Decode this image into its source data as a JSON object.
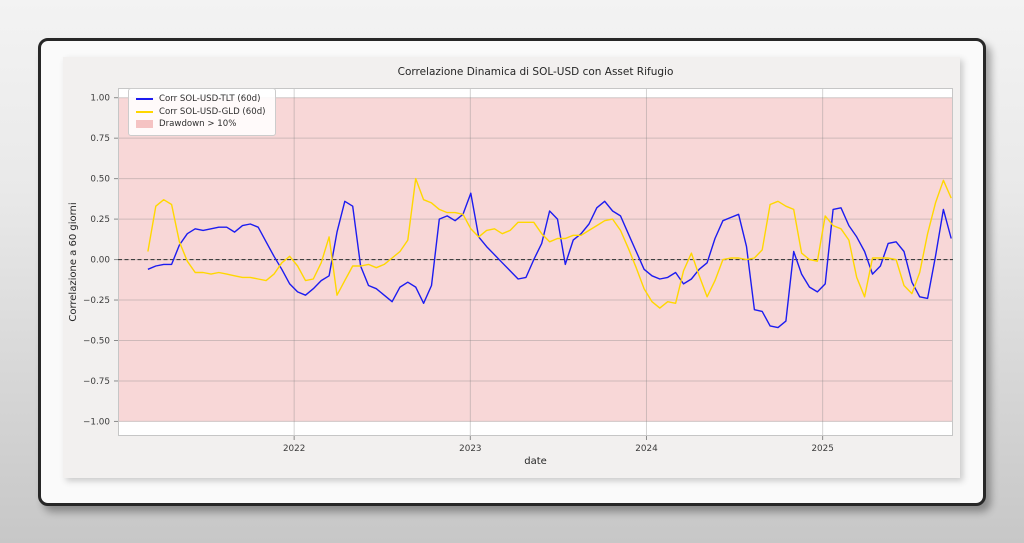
{
  "window": {
    "kind": "framed chart card"
  },
  "chart_data": {
    "type": "line",
    "title": "Correlazione Dinamica di SOL-USD con Asset Rifugio",
    "xlabel": "date",
    "ylabel": "Correlazione a 60 giorni",
    "grid": true,
    "legend_position": "upper-left",
    "xlim": [
      2021.0,
      2025.74
    ],
    "ylim": [
      -1.09,
      1.06
    ],
    "x_ticks": [
      {
        "value": 2022,
        "label": "2022"
      },
      {
        "value": 2023,
        "label": "2023"
      },
      {
        "value": 2024,
        "label": "2024"
      },
      {
        "value": 2025,
        "label": "2025"
      }
    ],
    "y_ticks": [
      {
        "value": 1.0,
        "label": "1.00"
      },
      {
        "value": 0.75,
        "label": "0.75"
      },
      {
        "value": 0.5,
        "label": "0.50"
      },
      {
        "value": 0.25,
        "label": "0.25"
      },
      {
        "value": 0.0,
        "label": "0.00"
      },
      {
        "value": -0.25,
        "label": "−0.25"
      },
      {
        "value": -0.5,
        "label": "−0.50"
      },
      {
        "value": -0.75,
        "label": "−0.75"
      },
      {
        "value": -1.0,
        "label": "−1.00"
      }
    ],
    "x_start": 2021.17,
    "x_end": 2025.73,
    "series": [
      {
        "name": "Corr SOL-USD-TLT (60d)",
        "color": "#1c1cf0",
        "values": [
          -0.06,
          -0.04,
          -0.03,
          -0.03,
          0.09,
          0.16,
          0.19,
          0.18,
          0.19,
          0.2,
          0.2,
          0.17,
          0.21,
          0.22,
          0.2,
          0.11,
          0.02,
          -0.06,
          -0.15,
          -0.2,
          -0.22,
          -0.18,
          -0.13,
          -0.1,
          0.17,
          0.36,
          0.33,
          -0.04,
          -0.16,
          -0.18,
          -0.22,
          -0.26,
          -0.17,
          -0.14,
          -0.17,
          -0.27,
          -0.16,
          0.25,
          0.27,
          0.24,
          0.28,
          0.41,
          0.14,
          0.08,
          0.03,
          -0.02,
          -0.07,
          -0.12,
          -0.11,
          0.0,
          0.1,
          0.3,
          0.25,
          -0.03,
          0.12,
          0.16,
          0.22,
          0.32,
          0.36,
          0.3,
          0.27,
          0.16,
          0.05,
          -0.06,
          -0.1,
          -0.12,
          -0.11,
          -0.08,
          -0.15,
          -0.12,
          -0.06,
          -0.02,
          0.13,
          0.24,
          0.26,
          0.28,
          0.08,
          -0.31,
          -0.32,
          -0.41,
          -0.42,
          -0.38,
          0.05,
          -0.09,
          -0.17,
          -0.2,
          -0.15,
          0.31,
          0.32,
          0.21,
          0.14,
          0.05,
          -0.09,
          -0.04,
          0.1,
          0.11,
          0.05,
          -0.14,
          -0.23,
          -0.24,
          0.02,
          0.31,
          0.13
        ]
      },
      {
        "name": "Corr SOL-USD-GLD (60d)",
        "color": "#ffd700",
        "values": [
          0.05,
          0.33,
          0.37,
          0.34,
          0.11,
          -0.01,
          -0.08,
          -0.08,
          -0.09,
          -0.08,
          -0.09,
          -0.1,
          -0.11,
          -0.11,
          -0.12,
          -0.13,
          -0.09,
          -0.02,
          0.02,
          -0.04,
          -0.13,
          -0.12,
          -0.02,
          0.14,
          -0.22,
          -0.13,
          -0.04,
          -0.04,
          -0.03,
          -0.05,
          -0.03,
          0.01,
          0.05,
          0.12,
          0.5,
          0.37,
          0.35,
          0.31,
          0.29,
          0.29,
          0.28,
          0.19,
          0.14,
          0.18,
          0.19,
          0.16,
          0.18,
          0.23,
          0.23,
          0.23,
          0.16,
          0.11,
          0.13,
          0.13,
          0.15,
          0.15,
          0.18,
          0.21,
          0.24,
          0.25,
          0.18,
          0.07,
          -0.05,
          -0.18,
          -0.26,
          -0.3,
          -0.26,
          -0.27,
          -0.07,
          0.04,
          -0.1,
          -0.23,
          -0.13,
          0.0,
          0.01,
          0.01,
          0.0,
          0.01,
          0.06,
          0.34,
          0.36,
          0.33,
          0.31,
          0.04,
          0.0,
          -0.01,
          0.27,
          0.21,
          0.19,
          0.12,
          -0.11,
          -0.23,
          0.01,
          0.01,
          0.01,
          0.0,
          -0.16,
          -0.21,
          -0.08,
          0.16,
          0.35,
          0.49,
          0.38
        ]
      }
    ],
    "band": {
      "label": "Drawdown > 10%",
      "fill": "#f8d7d7",
      "legend_fill": "#f5c3c3",
      "y_from": -1.0,
      "y_to": 1.0,
      "x_from": 2021.0,
      "x_to": 2025.74
    },
    "zero_line": {
      "value": 0.0,
      "color": "#404040",
      "style": "dashed"
    }
  }
}
